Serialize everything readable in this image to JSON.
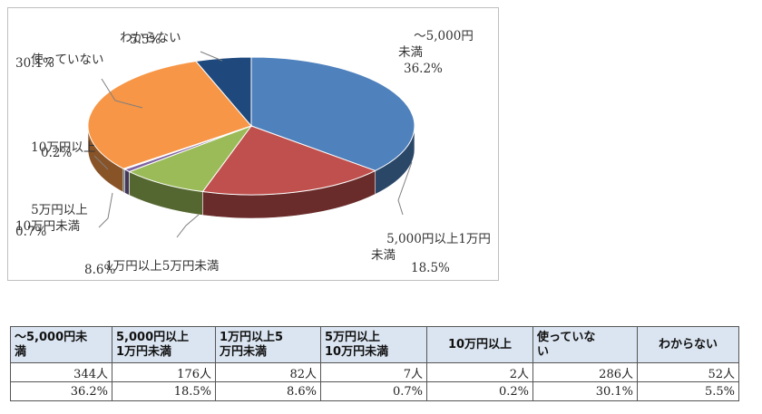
{
  "chart_data": {
    "type": "pie",
    "style": "3d",
    "slices": [
      {
        "label": "～5,000円\n未満",
        "value": 36.2,
        "pct_text": "36.2%",
        "color": "#4f81bd"
      },
      {
        "label": "5,000円以上1万円\n未満",
        "value": 18.5,
        "pct_text": "18.5%",
        "color": "#c0504d"
      },
      {
        "label": "1万円以上5万円未満",
        "value": 8.6,
        "pct_text": "8.6%",
        "color": "#9bbb59"
      },
      {
        "label": "5万円以上\n10万円未満",
        "value": 0.7,
        "pct_text": "0.7%",
        "color": "#8064a2"
      },
      {
        "label": "10万円以上",
        "value": 0.2,
        "pct_text": "0.2%",
        "color": "#4bacc6"
      },
      {
        "label": "使っていない",
        "value": 30.1,
        "pct_text": "30.1%",
        "color": "#f79646"
      },
      {
        "label": "わからない",
        "value": 5.5,
        "pct_text": "5.5%",
        "color": "#1f497d"
      }
    ]
  },
  "table": {
    "headers": [
      "～5,000円未\n満",
      "5,000円以上\n1万円未満",
      "1万円以上5\n万円未満",
      "5万円以上\n10万円未満",
      "10万円以上",
      "使っていな\nい",
      "わからない"
    ],
    "counts": [
      "344人",
      "176人",
      "82人",
      "7人",
      "2人",
      "286人",
      "52人"
    ],
    "percents": [
      "36.2%",
      "18.5%",
      "8.6%",
      "0.7%",
      "0.2%",
      "30.1%",
      "5.5%"
    ]
  }
}
